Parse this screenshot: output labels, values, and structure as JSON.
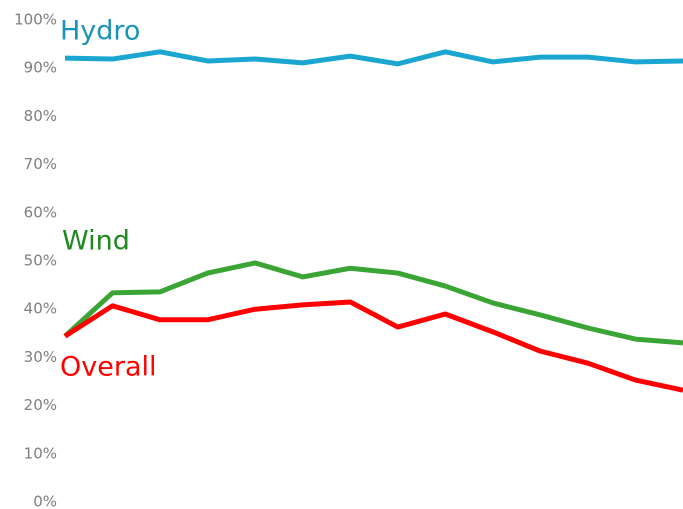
{
  "chart_data": {
    "type": "line",
    "categories": [
      null,
      null,
      null,
      null,
      null,
      null,
      null,
      null,
      null,
      null,
      null,
      null,
      null,
      null
    ],
    "series": [
      {
        "name": "Hydro",
        "color": "#1aa6d1",
        "label_color": "#1a93bd",
        "values": [
          92.1,
          91.9,
          93.4,
          91.5,
          91.9,
          91.1,
          92.5,
          90.9,
          93.4,
          91.3,
          92.3,
          92.3,
          91.3,
          91.5
        ]
      },
      {
        "name": "Wind",
        "color": "#3aa535",
        "label_color": "#1e8a1e",
        "values": [
          34.4,
          43.4,
          43.6,
          47.5,
          49.6,
          46.7,
          48.5,
          47.5,
          44.8,
          41.3,
          38.8,
          36.1,
          33.8,
          33.0
        ]
      },
      {
        "name": "Overall",
        "color": "#ff0000",
        "label_color": "#ff0000",
        "values": [
          34.4,
          40.7,
          37.8,
          37.8,
          40.0,
          40.9,
          41.5,
          36.3,
          39.0,
          35.3,
          31.3,
          28.8,
          25.3,
          23.2
        ]
      }
    ],
    "ylim": [
      0,
      100
    ],
    "yticks": [
      {
        "value": 0,
        "label": "0%"
      },
      {
        "value": 10,
        "label": "10%"
      },
      {
        "value": 20,
        "label": "20%"
      },
      {
        "value": 30,
        "label": "30%"
      },
      {
        "value": 40,
        "label": "40%"
      },
      {
        "value": 50,
        "label": "50%"
      },
      {
        "value": 60,
        "label": "60%"
      },
      {
        "value": 70,
        "label": "70%"
      },
      {
        "value": 80,
        "label": "80%"
      },
      {
        "value": 90,
        "label": "90%"
      },
      {
        "value": 100,
        "label": "100%"
      }
    ],
    "grid": false
  }
}
